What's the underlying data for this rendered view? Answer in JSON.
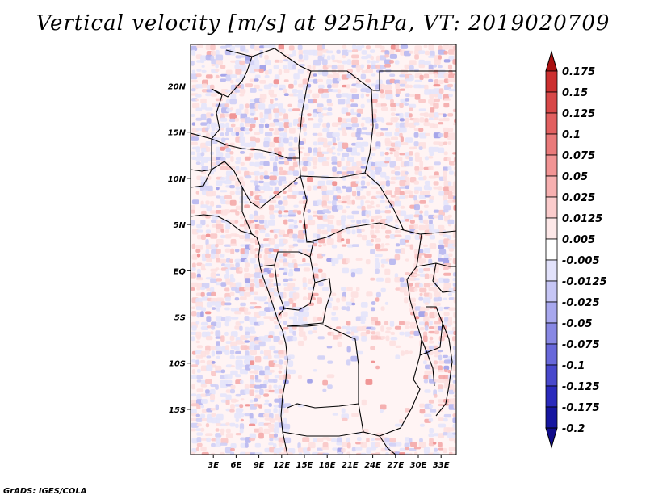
{
  "title": "Vertical velocity [m/s] at 925hPa, VT: 2019020709",
  "footer": "GrADS: IGES/COLA",
  "map": {
    "lon_range": [
      0,
      35
    ],
    "lat_range": [
      -19.9,
      24.5
    ],
    "lon_ticks": [
      {
        "value": 3,
        "label": "3E"
      },
      {
        "value": 6,
        "label": "6E"
      },
      {
        "value": 9,
        "label": "9E"
      },
      {
        "value": 12,
        "label": "12E"
      },
      {
        "value": 15,
        "label": "15E"
      },
      {
        "value": 18,
        "label": "18E"
      },
      {
        "value": 21,
        "label": "21E"
      },
      {
        "value": 24,
        "label": "24E"
      },
      {
        "value": 27,
        "label": "27E"
      },
      {
        "value": 30,
        "label": "30E"
      },
      {
        "value": 33,
        "label": "33E"
      }
    ],
    "lat_ticks": [
      {
        "value": 20,
        "label": "20N"
      },
      {
        "value": 15,
        "label": "15N"
      },
      {
        "value": 10,
        "label": "10N"
      },
      {
        "value": 5,
        "label": "5N"
      },
      {
        "value": 0,
        "label": "EQ"
      },
      {
        "value": -5,
        "label": "5S"
      },
      {
        "value": -10,
        "label": "10S"
      },
      {
        "value": -15,
        "label": "15S"
      }
    ]
  },
  "colorbar": {
    "levels": [
      {
        "label": "0.175",
        "color": "#c01a1a"
      },
      {
        "label": "0.15",
        "color": "#cc3030"
      },
      {
        "label": "0.125",
        "color": "#d84848"
      },
      {
        "label": "0.1",
        "color": "#e26060"
      },
      {
        "label": "0.075",
        "color": "#ea7a7a"
      },
      {
        "label": "0.05",
        "color": "#f29494"
      },
      {
        "label": "0.025",
        "color": "#f7b0b0"
      },
      {
        "label": "0.0125",
        "color": "#fbcccc"
      },
      {
        "label": "0.005",
        "color": "#fde8e8"
      },
      {
        "label": "-0.005",
        "color": "#ffffff"
      },
      {
        "label": "-0.0125",
        "color": "#e2e2fb"
      },
      {
        "label": "-0.025",
        "color": "#c6c6f5"
      },
      {
        "label": "-0.05",
        "color": "#a8a8ee"
      },
      {
        "label": "-0.075",
        "color": "#8888e4"
      },
      {
        "label": "-0.1",
        "color": "#6868da"
      },
      {
        "label": "-0.125",
        "color": "#4848cc"
      },
      {
        "label": "-0.175",
        "color": "#2a2abc"
      },
      {
        "label": "-0.2",
        "color": "#1616a0"
      }
    ],
    "top_color": "#a81010",
    "bottom_color": "#100c8a"
  }
}
